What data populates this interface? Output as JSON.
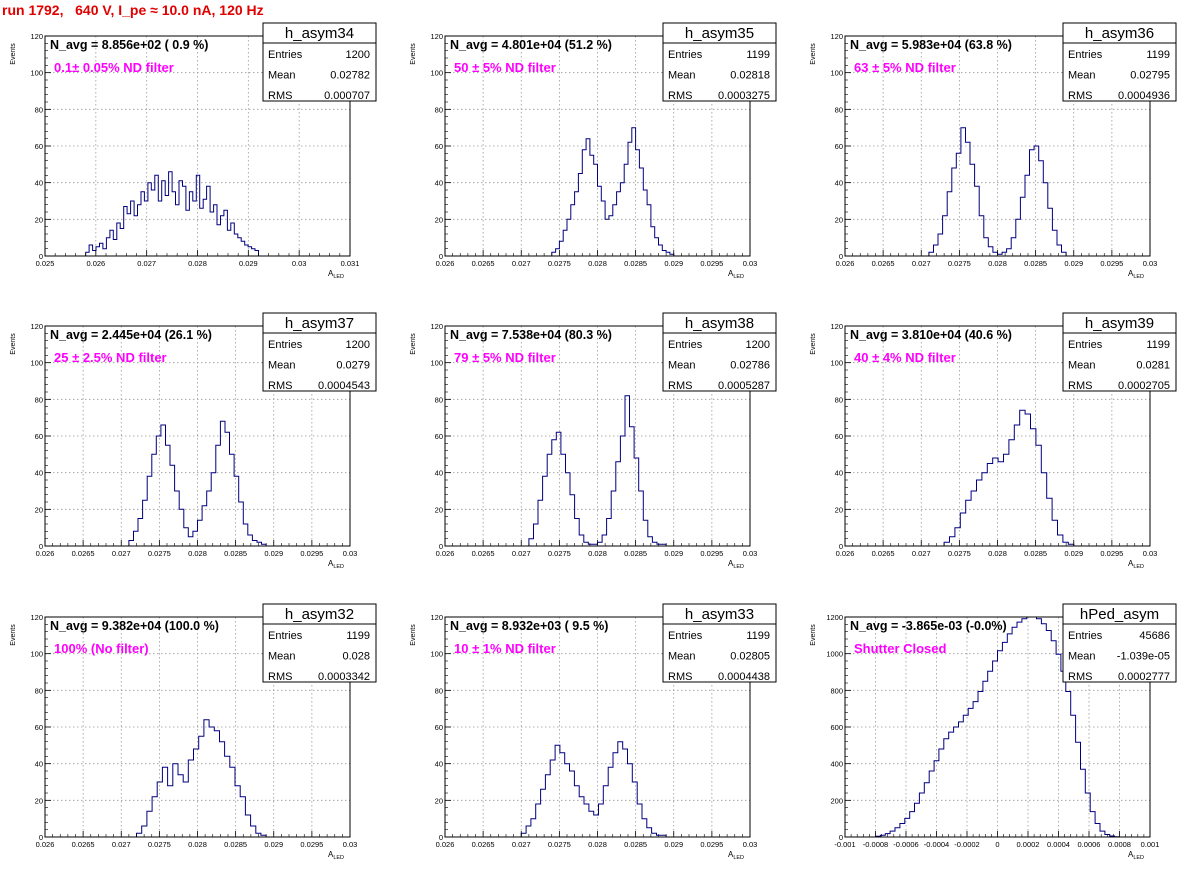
{
  "page": {
    "title": "run 1792,   640 V, I_pe ≈ 10.0 nA, 120 Hz"
  },
  "colors": {
    "title": "#e00000",
    "filter_label": "#ff00ff",
    "histogram_line": "#000080",
    "frame": "#000000"
  },
  "chart_data": [
    {
      "type": "bar",
      "name": "h_asym34",
      "stats": {
        "entries": "1200",
        "mean": "0.02782",
        "rms": "0.000707"
      },
      "navg": "N_avg = 8.856e+02 ( 0.9 %)",
      "filter": "0.1± 0.05% ND filter",
      "xlabel": "A_LED",
      "ylabel": "Events",
      "xlim": [
        0.025,
        0.031
      ],
      "ylim": [
        0,
        120
      ],
      "xticks": [
        "0.025",
        "0.026",
        "0.027",
        "0.028",
        "0.029",
        "0.03",
        "0.031"
      ],
      "yticks": [
        "0",
        "20",
        "40",
        "60",
        "80",
        "100",
        "120"
      ],
      "bin_edges": [
        0.0258,
        0.0292
      ],
      "counts": [
        2,
        6,
        3,
        5,
        7,
        4,
        10,
        14,
        9,
        18,
        15,
        27,
        23,
        30,
        22,
        28,
        35,
        30,
        40,
        36,
        44,
        30,
        41,
        33,
        46,
        35,
        28,
        41,
        38,
        25,
        35,
        30,
        44,
        26,
        31,
        38,
        24,
        28,
        17,
        22,
        25,
        14,
        18,
        12,
        10,
        8,
        6,
        5,
        4,
        3
      ]
    },
    {
      "type": "bar",
      "name": "h_asym35",
      "stats": {
        "entries": "1199",
        "mean": "0.02818",
        "rms": "0.0003275"
      },
      "navg": "N_avg = 4.801e+04 (51.2 %)",
      "filter": "50 ± 5% ND filter",
      "xlabel": "A_LED",
      "ylabel": "Events",
      "xlim": [
        0.026,
        0.03
      ],
      "ylim": [
        0,
        120
      ],
      "xticks": [
        "0.026",
        "0.0265",
        "0.027",
        "0.0275",
        "0.028",
        "0.0285",
        "0.029",
        "0.0295",
        "0.03"
      ],
      "yticks": [
        "0",
        "20",
        "40",
        "60",
        "80",
        "100",
        "120"
      ],
      "bin_edges": [
        0.0274,
        0.029
      ],
      "counts": [
        2,
        4,
        8,
        14,
        20,
        28,
        35,
        45,
        58,
        64,
        55,
        50,
        38,
        30,
        20,
        22,
        28,
        35,
        40,
        50,
        62,
        70,
        58,
        48,
        36,
        28,
        16,
        10,
        6,
        3,
        2,
        1
      ]
    },
    {
      "type": "bar",
      "name": "h_asym36",
      "stats": {
        "entries": "1199",
        "mean": "0.02795",
        "rms": "0.0004936"
      },
      "navg": "N_avg = 5.983e+04 (63.8 %)",
      "filter": "63 ± 5% ND filter",
      "xlabel": "A_LED",
      "ylabel": "Events",
      "xlim": [
        0.026,
        0.03
      ],
      "ylim": [
        0,
        120
      ],
      "xticks": [
        "0.026",
        "0.0265",
        "0.027",
        "0.0275",
        "0.028",
        "0.0285",
        "0.029",
        "0.0295",
        "0.03"
      ],
      "yticks": [
        "0",
        "20",
        "40",
        "60",
        "80",
        "100",
        "120"
      ],
      "bin_edges": [
        0.0271,
        0.0289
      ],
      "counts": [
        2,
        6,
        12,
        22,
        35,
        48,
        56,
        70,
        62,
        50,
        38,
        22,
        10,
        5,
        2,
        1,
        2,
        4,
        10,
        20,
        32,
        44,
        58,
        60,
        52,
        40,
        26,
        14,
        6,
        2
      ]
    },
    {
      "type": "bar",
      "name": "h_asym37",
      "stats": {
        "entries": "1200",
        "mean": "0.0279",
        "rms": "0.0004543"
      },
      "navg": "N_avg = 2.445e+04 (26.1 %)",
      "filter": "25 ± 2.5% ND filter",
      "xlabel": "A_LED",
      "ylabel": "Events",
      "xlim": [
        0.026,
        0.03
      ],
      "ylim": [
        0,
        120
      ],
      "xticks": [
        "0.026",
        "0.0265",
        "0.027",
        "0.0275",
        "0.028",
        "0.0285",
        "0.029",
        "0.0295",
        "0.03"
      ],
      "yticks": [
        "0",
        "20",
        "40",
        "60",
        "80",
        "100",
        "120"
      ],
      "bin_edges": [
        0.0271,
        0.0289
      ],
      "counts": [
        3,
        8,
        15,
        25,
        38,
        50,
        60,
        66,
        55,
        44,
        30,
        20,
        10,
        5,
        8,
        14,
        22,
        30,
        40,
        55,
        68,
        62,
        50,
        38,
        24,
        12,
        6,
        3,
        2,
        1
      ]
    },
    {
      "type": "bar",
      "name": "h_asym38",
      "stats": {
        "entries": "1200",
        "mean": "0.02786",
        "rms": "0.0005287"
      },
      "navg": "N_avg = 7.538e+04 (80.3 %)",
      "filter": "79 ± 5% ND filter",
      "xlabel": "A_LED",
      "ylabel": "Events",
      "xlim": [
        0.026,
        0.03
      ],
      "ylim": [
        0,
        120
      ],
      "xticks": [
        "0.026",
        "0.0265",
        "0.027",
        "0.0275",
        "0.028",
        "0.0285",
        "0.029",
        "0.0295",
        "0.03"
      ],
      "yticks": [
        "0",
        "20",
        "40",
        "60",
        "80",
        "100",
        "120"
      ],
      "bin_edges": [
        0.0271,
        0.0289
      ],
      "counts": [
        4,
        12,
        25,
        38,
        50,
        58,
        62,
        50,
        40,
        28,
        15,
        6,
        2,
        1,
        1,
        2,
        6,
        15,
        30,
        46,
        60,
        82,
        65,
        48,
        30,
        14,
        5,
        2,
        1,
        1
      ]
    },
    {
      "type": "bar",
      "name": "h_asym39",
      "stats": {
        "entries": "1199",
        "mean": "0.0281",
        "rms": "0.0002705"
      },
      "navg": "N_avg = 3.810e+04 (40.6 %)",
      "filter": "40 ± 4% ND filter",
      "xlabel": "A_LED",
      "ylabel": "Events",
      "xlim": [
        0.026,
        0.03
      ],
      "ylim": [
        0,
        120
      ],
      "xticks": [
        "0.026",
        "0.0265",
        "0.027",
        "0.0275",
        "0.028",
        "0.0285",
        "0.029",
        "0.0295",
        "0.03"
      ],
      "yticks": [
        "0",
        "20",
        "40",
        "60",
        "80",
        "100",
        "120"
      ],
      "bin_edges": [
        0.0273,
        0.029
      ],
      "counts": [
        2,
        5,
        10,
        18,
        25,
        30,
        36,
        40,
        45,
        48,
        46,
        50,
        58,
        66,
        74,
        72,
        64,
        55,
        40,
        26,
        14,
        6,
        2,
        1
      ]
    },
    {
      "type": "bar",
      "name": "h_asym32",
      "stats": {
        "entries": "1199",
        "mean": "0.028",
        "rms": "0.0003342"
      },
      "navg": "N_avg = 9.382e+04 (100.0 %)",
      "filter": "100% (No filter)",
      "xlabel": "A_LED",
      "ylabel": "Events",
      "xlim": [
        0.026,
        0.03
      ],
      "ylim": [
        0,
        120
      ],
      "xticks": [
        "0.026",
        "0.0265",
        "0.027",
        "0.0275",
        "0.028",
        "0.0285",
        "0.029",
        "0.0295",
        "0.03"
      ],
      "yticks": [
        "0",
        "20",
        "40",
        "60",
        "80",
        "100",
        "120"
      ],
      "bin_edges": [
        0.0272,
        0.0289
      ],
      "counts": [
        2,
        6,
        14,
        22,
        30,
        38,
        28,
        40,
        34,
        30,
        42,
        48,
        55,
        64,
        60,
        58,
        52,
        44,
        38,
        28,
        22,
        12,
        6,
        2,
        1
      ]
    },
    {
      "type": "bar",
      "name": "h_asym33",
      "stats": {
        "entries": "1199",
        "mean": "0.02805",
        "rms": "0.0004438"
      },
      "navg": "N_avg = 8.932e+03 ( 9.5 %)",
      "filter": "10 ± 1% ND filter",
      "xlabel": "A_LED",
      "ylabel": "Events",
      "xlim": [
        0.026,
        0.03
      ],
      "ylim": [
        0,
        120
      ],
      "xticks": [
        "0.026",
        "0.0265",
        "0.027",
        "0.0275",
        "0.028",
        "0.0285",
        "0.029",
        "0.0295",
        "0.03"
      ],
      "yticks": [
        "0",
        "20",
        "40",
        "60",
        "80",
        "100",
        "120"
      ],
      "bin_edges": [
        0.027,
        0.0289
      ],
      "counts": [
        2,
        6,
        10,
        18,
        26,
        34,
        42,
        50,
        46,
        40,
        36,
        28,
        22,
        18,
        14,
        12,
        18,
        28,
        38,
        46,
        52,
        48,
        40,
        30,
        18,
        10,
        5,
        2,
        1,
        1
      ]
    },
    {
      "type": "bar",
      "name": "hPed_asym",
      "stats": {
        "entries": "45686",
        "mean": "-1.039e-05",
        "rms": "0.0002777"
      },
      "navg": "N_avg = -3.865e-03 (-0.0%)",
      "filter": "Shutter Closed",
      "xlabel": "A_LED",
      "ylabel": "Events",
      "xlim": [
        -0.001,
        0.001
      ],
      "ylim": [
        0,
        1300
      ],
      "xticks": [
        "-0.001",
        "-0.0008",
        "-0.0006",
        "-0.0004",
        "-0.0002",
        "0",
        "0.0002",
        "0.0004",
        "0.0006",
        "0.0008",
        "0.001"
      ],
      "yticks": [
        "0",
        "200",
        "400",
        "600",
        "800",
        "1000",
        "1200"
      ],
      "bin_edges": [
        -0.0008,
        0.0008
      ],
      "counts": [
        5,
        10,
        20,
        35,
        55,
        80,
        110,
        150,
        200,
        260,
        320,
        390,
        450,
        520,
        580,
        620,
        650,
        680,
        720,
        760,
        800,
        860,
        920,
        980,
        1040,
        1100,
        1150,
        1200,
        1240,
        1270,
        1290,
        1300,
        1300,
        1290,
        1260,
        1220,
        1160,
        1080,
        980,
        860,
        720,
        560,
        400,
        260,
        150,
        80,
        35,
        15,
        6,
        2
      ]
    }
  ]
}
